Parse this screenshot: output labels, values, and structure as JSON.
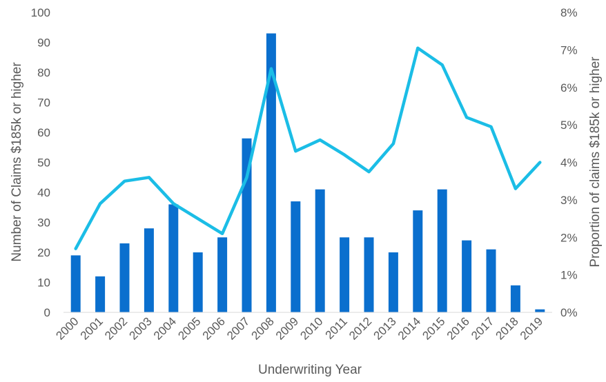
{
  "chart_data": {
    "type": "bar",
    "title": "",
    "xlabel": "Underwriting Year",
    "ylabel": "Number of Claims $185k or higher",
    "y2label": "Proportion of claims $185k or higher",
    "categories": [
      "2000",
      "2001",
      "2002",
      "2003",
      "2004",
      "2005",
      "2006",
      "2007",
      "2008",
      "2009",
      "2010",
      "2011",
      "2012",
      "2013",
      "2014",
      "2015",
      "2016",
      "2017",
      "2018",
      "2019"
    ],
    "series": [
      {
        "type": "bar",
        "axis": "left",
        "color": "#0a6fce",
        "values": [
          19,
          12,
          23,
          28,
          36,
          20,
          25,
          58,
          93,
          37,
          41,
          25,
          25,
          20,
          34,
          41,
          24,
          21,
          9,
          1
        ]
      },
      {
        "type": "line",
        "axis": "right",
        "color": "#1bbde6",
        "values": [
          1.7,
          2.9,
          3.5,
          3.6,
          2.9,
          2.5,
          2.1,
          3.6,
          6.5,
          4.3,
          4.6,
          4.2,
          3.75,
          4.5,
          7.05,
          6.6,
          5.2,
          4.95,
          3.3,
          4.0
        ]
      }
    ],
    "ylim": [
      0,
      100
    ],
    "yticks": [
      "0",
      "10",
      "20",
      "30",
      "40",
      "50",
      "60",
      "70",
      "80",
      "90",
      "100"
    ],
    "y2lim": [
      0,
      8
    ],
    "y2ticks": [
      "0%",
      "1%",
      "2%",
      "3%",
      "4%",
      "5%",
      "6%",
      "7%",
      "8%"
    ],
    "grid": false,
    "legend": "none"
  }
}
